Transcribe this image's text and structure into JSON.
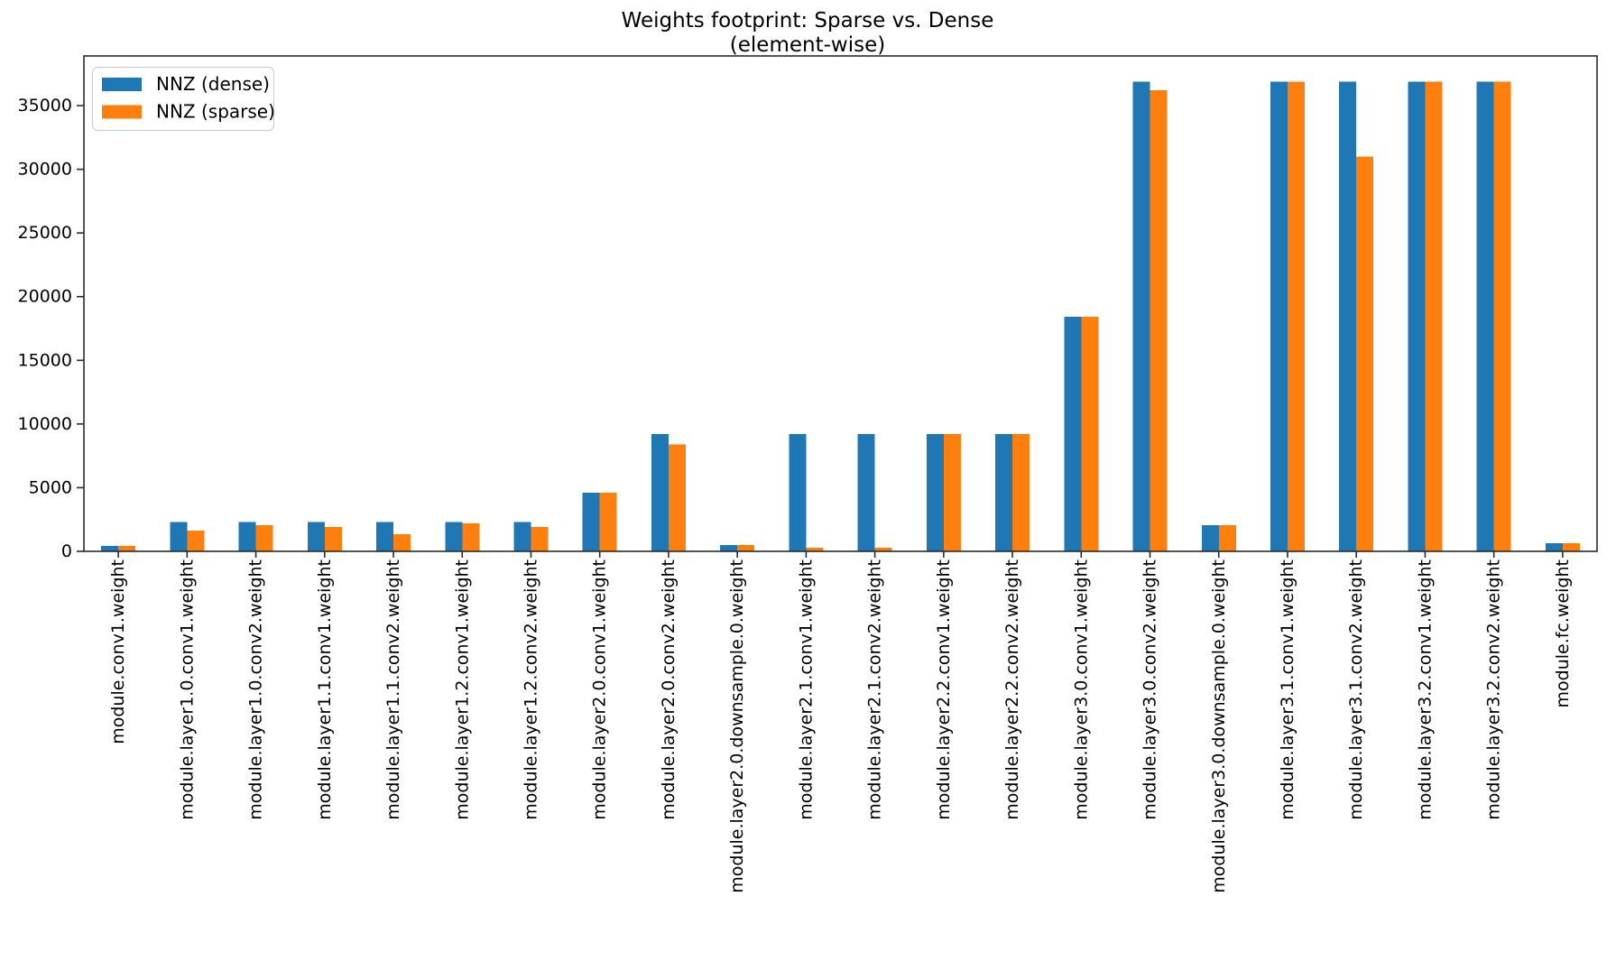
{
  "chart_data": {
    "type": "bar",
    "title": "Weights footprint: Sparse vs. Dense",
    "subtitle": "(element-wise)",
    "xlabel": "",
    "ylabel": "",
    "grid": false,
    "background": "#ffffff",
    "ylim": [
      0,
      38900
    ],
    "yticks": [
      0,
      5000,
      10000,
      15000,
      20000,
      25000,
      30000,
      35000
    ],
    "legend": {
      "position": "upper left",
      "entries": [
        "NNZ (dense)",
        "NNZ (sparse)"
      ]
    },
    "categories": [
      "module.conv1.weight",
      "module.layer1.0.conv1.weight",
      "module.layer1.0.conv2.weight",
      "module.layer1.1.conv1.weight",
      "module.layer1.1.conv2.weight",
      "module.layer1.2.conv1.weight",
      "module.layer1.2.conv2.weight",
      "module.layer2.0.conv1.weight",
      "module.layer2.0.conv2.weight",
      "module.layer2.0.downsample.0.weight",
      "module.layer2.1.conv1.weight",
      "module.layer2.1.conv2.weight",
      "module.layer2.2.conv1.weight",
      "module.layer2.2.conv2.weight",
      "module.layer3.0.conv1.weight",
      "module.layer3.0.conv2.weight",
      "module.layer3.0.downsample.0.weight",
      "module.layer3.1.conv1.weight",
      "module.layer3.1.conv2.weight",
      "module.layer3.2.conv1.weight",
      "module.layer3.2.conv2.weight",
      "module.fc.weight"
    ],
    "series": [
      {
        "name": "NNZ (dense)",
        "color": "#1f77b4",
        "values": [
          432,
          2304,
          2304,
          2304,
          2304,
          2304,
          2304,
          4608,
          9216,
          512,
          9216,
          9216,
          9216,
          9216,
          18432,
          36864,
          2048,
          36864,
          36864,
          36864,
          36864,
          640
        ]
      },
      {
        "name": "NNZ (sparse)",
        "color": "#ff7f0e",
        "values": [
          432,
          1630,
          2050,
          1900,
          1350,
          2200,
          1900,
          4608,
          8400,
          512,
          300,
          300,
          9216,
          9216,
          18432,
          36200,
          2048,
          36864,
          31000,
          36864,
          36864,
          640
        ]
      }
    ]
  }
}
